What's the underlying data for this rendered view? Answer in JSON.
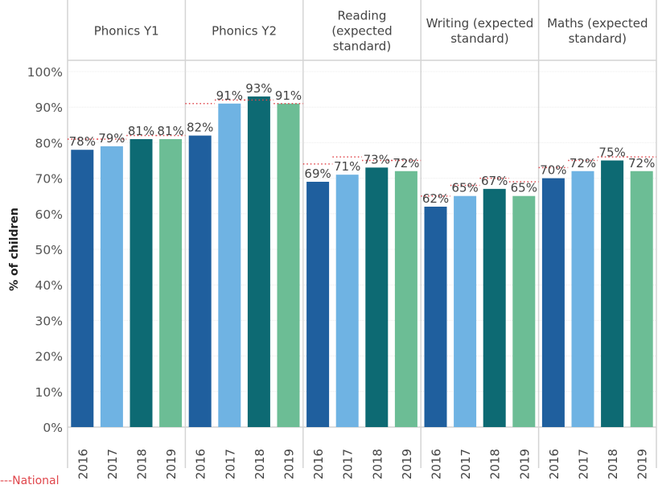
{
  "chart_data": {
    "type": "bar",
    "title": "",
    "ylabel": "% of children",
    "xlabel": "",
    "ylim": [
      0,
      100
    ],
    "yticks": [
      "0%",
      "10%",
      "20%",
      "30%",
      "40%",
      "50%",
      "60%",
      "70%",
      "80%",
      "90%",
      "100%"
    ],
    "grid": true,
    "categories": [
      "2016",
      "2017",
      "2018",
      "2019"
    ],
    "series_colors": {
      "2016": "#1f5f9e",
      "2017": "#6fb3e3",
      "2018": "#0d6a73",
      "2019": "#6cbd95"
    },
    "national_color": "#e0474c",
    "panels": [
      {
        "label": "Phonics Y1",
        "label_lines": [
          "Phonics Y1"
        ],
        "values": [
          78,
          79,
          81,
          81
        ],
        "value_labels": [
          "78%",
          "79%",
          "81%",
          "81%"
        ],
        "national": [
          81,
          81,
          82,
          82
        ]
      },
      {
        "label": "Phonics Y2",
        "label_lines": [
          "Phonics Y2"
        ],
        "values": [
          82,
          91,
          93,
          91
        ],
        "value_labels": [
          "82%",
          "91%",
          "93%",
          "91%"
        ],
        "national": [
          91,
          92,
          92,
          91
        ]
      },
      {
        "label": "Reading (expected standard)",
        "label_lines": [
          "Reading",
          "(expected",
          "standard)"
        ],
        "values": [
          69,
          71,
          73,
          72
        ],
        "value_labels": [
          "69%",
          "71%",
          "73%",
          "72%"
        ],
        "national": [
          74,
          76,
          75,
          75
        ]
      },
      {
        "label": "Writing (expected standard)",
        "label_lines": [
          "Writing (expected",
          "standard)"
        ],
        "values": [
          62,
          65,
          67,
          65
        ],
        "value_labels": [
          "62%",
          "65%",
          "67%",
          "65%"
        ],
        "national": [
          65,
          68,
          70,
          69
        ]
      },
      {
        "label": "Maths (expected standard)",
        "label_lines": [
          "Maths (expected",
          "standard)"
        ],
        "values": [
          70,
          72,
          75,
          72
        ],
        "value_labels": [
          "70%",
          "72%",
          "75%",
          "72%"
        ],
        "national": [
          73,
          75,
          76,
          76
        ]
      }
    ],
    "legend": {
      "entries": [
        "---National"
      ],
      "placement": "bottom-left"
    }
  },
  "legend_note": "---National"
}
